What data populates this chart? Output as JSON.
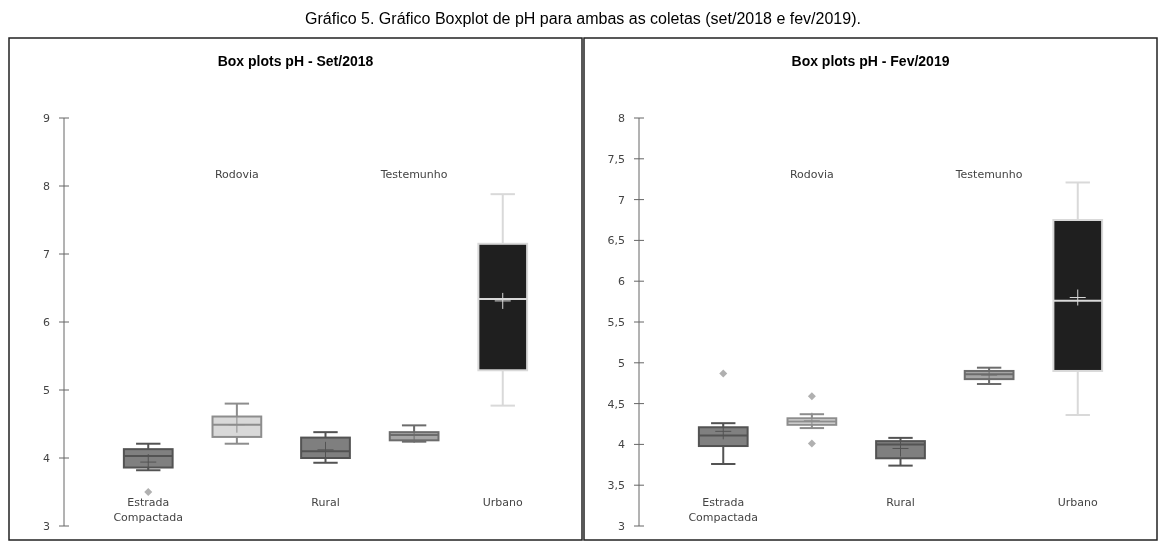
{
  "chart_data": [
    {
      "type": "box",
      "title": "Box plots pH - Set/2018",
      "annotations": [
        "Gráfico 5. Gráfico Boxplot de pH para ambas as coletas (set/2018 e fev/2019)."
      ],
      "categories": [
        "Estrada Compactada",
        "Rodovia",
        "Rural",
        "Testemunho",
        "Urbano"
      ],
      "colors": [
        "#808080",
        "#d9d9d9",
        "#7f7f7f",
        "#a6a6a6",
        "#1f1f1f"
      ],
      "ylim": [
        3,
        9
      ],
      "yticks": [
        3,
        4,
        5,
        6,
        7,
        8,
        9
      ],
      "marker": "diamond",
      "boxes": [
        {
          "low": 3.82,
          "q1": 3.86,
          "median": 4.03,
          "q3": 4.13,
          "high": 4.21,
          "mean": 3.94,
          "outliers": [
            3.5
          ]
        },
        {
          "low": 4.21,
          "q1": 4.31,
          "median": 4.49,
          "q3": 4.61,
          "high": 4.8,
          "mean": 4.49
        },
        {
          "low": 3.93,
          "q1": 4.0,
          "median": 4.1,
          "q3": 4.3,
          "high": 4.38,
          "mean": 4.12
        },
        {
          "low": 4.24,
          "q1": 4.26,
          "median": 4.34,
          "q3": 4.38,
          "high": 4.48,
          "mean": 4.34
        },
        {
          "low": 4.77,
          "q1": 5.29,
          "median": 6.34,
          "q3": 7.15,
          "high": 7.88,
          "mean": 6.31
        }
      ]
    },
    {
      "type": "box",
      "title": "Box plots pH - Fev/2019",
      "categories": [
        "Estrada Compactada",
        "Rodovia",
        "Rural",
        "Testemunho",
        "Urbano"
      ],
      "colors": [
        "#808080",
        "#d9d9d9",
        "#7f7f7f",
        "#a6a6a6",
        "#1f1f1f"
      ],
      "ylim": [
        3,
        8
      ],
      "yticks": [
        3,
        {
          "value": 3.5,
          "label": "3,5"
        },
        4,
        {
          "value": 4.5,
          "label": "4,5"
        },
        5,
        {
          "value": 5.5,
          "label": "5,5"
        },
        6,
        {
          "value": 6.5,
          "label": "6,5"
        },
        7,
        {
          "value": 7.5,
          "label": "7,5"
        },
        8
      ],
      "marker": "diamond",
      "boxes": [
        {
          "low": 3.76,
          "q1": 3.98,
          "median": 4.11,
          "q3": 4.21,
          "high": 4.26,
          "mean": 4.16,
          "outliers": [
            4.87
          ]
        },
        {
          "low": 4.2,
          "q1": 4.24,
          "median": 4.28,
          "q3": 4.32,
          "high": 4.37,
          "mean": 4.29,
          "outliers": [
            4.59,
            4.01
          ]
        },
        {
          "low": 3.74,
          "q1": 3.83,
          "median": 4.0,
          "q3": 4.04,
          "high": 4.08,
          "mean": 3.95
        },
        {
          "low": 4.74,
          "q1": 4.8,
          "median": 4.86,
          "q3": 4.9,
          "high": 4.94,
          "mean": 4.85
        },
        {
          "low": 4.36,
          "q1": 4.9,
          "median": 5.76,
          "q3": 6.75,
          "high": 7.21,
          "mean": 5.8
        }
      ]
    }
  ]
}
